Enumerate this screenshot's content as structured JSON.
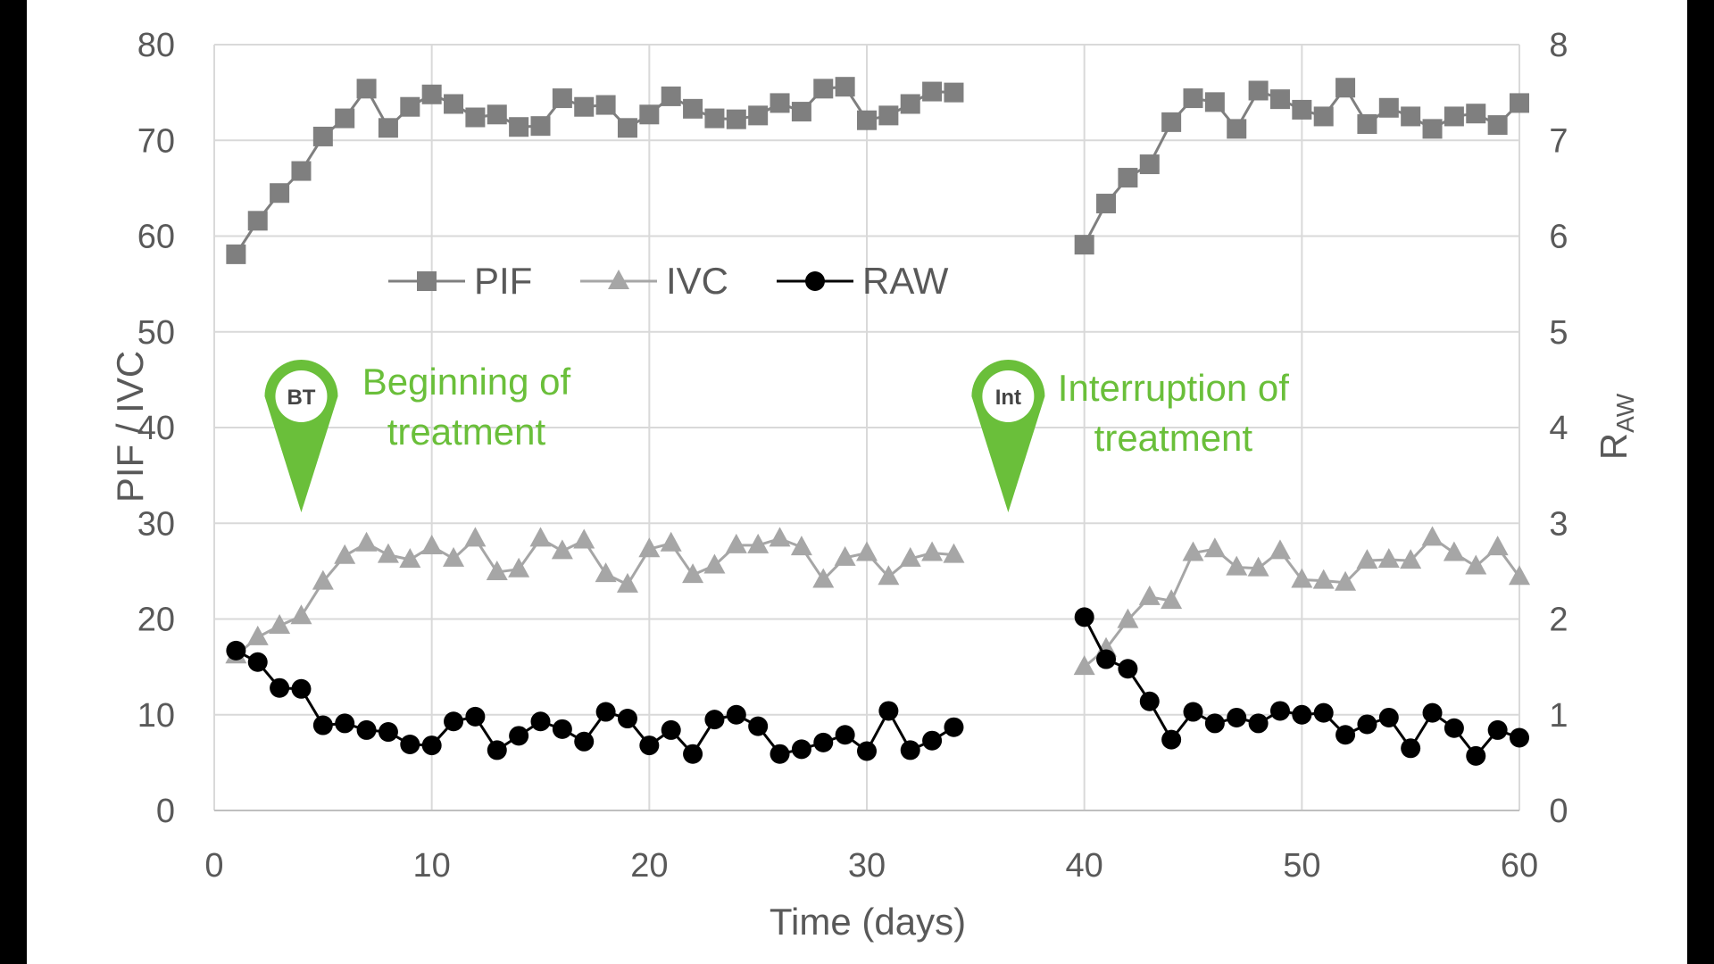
{
  "chart_data": {
    "type": "line",
    "xlabel": "Time (days)",
    "ylabel_left": "PIF / IVC",
    "ylabel_right": "R",
    "ylabel_right_sub": "AW",
    "xlim": [
      0,
      60
    ],
    "ylim_left": [
      0,
      80
    ],
    "ylim_right": [
      0,
      8
    ],
    "x_ticks": [
      "0",
      "10",
      "20",
      "30",
      "40",
      "50",
      "60"
    ],
    "y_ticks_left": [
      "0",
      "10",
      "20",
      "30",
      "40",
      "50",
      "60",
      "70",
      "80"
    ],
    "y_ticks_right": [
      "0",
      "1",
      "2",
      "3",
      "4",
      "5",
      "6",
      "7",
      "8"
    ],
    "grid": true,
    "legend_position": "top-left",
    "series": [
      {
        "name": "PIF",
        "axis": "left",
        "marker": "square",
        "color": "#7f7f7f",
        "x": [
          1,
          2,
          3,
          4,
          5,
          6,
          7,
          8,
          9,
          10,
          11,
          12,
          13,
          14,
          15,
          16,
          17,
          18,
          19,
          20,
          21,
          22,
          23,
          24,
          25,
          26,
          27,
          28,
          29,
          30,
          31,
          32,
          33,
          34,
          40,
          41,
          42,
          43,
          44,
          45,
          46,
          47,
          48,
          49,
          50,
          51,
          52,
          53,
          54,
          55,
          56,
          57,
          58,
          59,
          60
        ],
        "values": [
          58.1,
          61.6,
          64.5,
          66.8,
          70.4,
          72.3,
          75.4,
          71.3,
          73.5,
          74.8,
          73.8,
          72.4,
          72.7,
          71.4,
          71.5,
          74.4,
          73.5,
          73.7,
          71.3,
          72.7,
          74.6,
          73.3,
          72.3,
          72.2,
          72.6,
          73.9,
          73.0,
          75.4,
          75.6,
          72.1,
          72.6,
          73.8,
          75.1,
          75.0,
          59.1,
          63.4,
          66.1,
          67.5,
          71.9,
          74.4,
          74.0,
          71.2,
          75.2,
          74.3,
          73.2,
          72.5,
          75.5,
          71.7,
          73.4,
          72.5,
          71.2,
          72.5,
          72.8,
          71.6,
          73.9
        ]
      },
      {
        "name": "IVC",
        "axis": "left",
        "marker": "triangle",
        "color": "#a6a6a6",
        "x": [
          1,
          2,
          3,
          4,
          5,
          6,
          7,
          8,
          9,
          10,
          11,
          12,
          13,
          14,
          15,
          16,
          17,
          18,
          19,
          20,
          21,
          22,
          23,
          24,
          25,
          26,
          27,
          28,
          29,
          30,
          31,
          32,
          33,
          34,
          40,
          41,
          42,
          43,
          44,
          45,
          46,
          47,
          48,
          49,
          50,
          51,
          52,
          53,
          54,
          55,
          56,
          57,
          58,
          59,
          60
        ],
        "values": [
          16.2,
          18.1,
          19.3,
          20.3,
          23.9,
          26.6,
          27.9,
          26.7,
          26.2,
          27.6,
          26.3,
          28.4,
          24.9,
          25.2,
          28.4,
          27.1,
          28.2,
          24.7,
          23.6,
          27.3,
          27.9,
          24.6,
          25.6,
          27.7,
          27.7,
          28.4,
          27.5,
          24.1,
          26.4,
          26.9,
          24.4,
          26.3,
          26.9,
          26.7,
          15.0,
          16.9,
          19.9,
          22.3,
          21.9,
          26.9,
          27.3,
          25.4,
          25.3,
          27.1,
          24.1,
          24.0,
          23.8,
          26.1,
          26.2,
          26.1,
          28.5,
          26.9,
          25.5,
          27.5,
          24.4
        ]
      },
      {
        "name": "RAW",
        "axis": "right",
        "marker": "circle",
        "color": "#000000",
        "x": [
          1,
          2,
          3,
          4,
          5,
          6,
          7,
          8,
          9,
          10,
          11,
          12,
          13,
          14,
          15,
          16,
          17,
          18,
          19,
          20,
          21,
          22,
          23,
          24,
          25,
          26,
          27,
          28,
          29,
          30,
          31,
          32,
          33,
          34,
          40,
          41,
          42,
          43,
          44,
          45,
          46,
          47,
          48,
          49,
          50,
          51,
          52,
          53,
          54,
          55,
          56,
          57,
          58,
          59,
          60
        ],
        "values": [
          1.67,
          1.55,
          1.28,
          1.27,
          0.89,
          0.91,
          0.84,
          0.82,
          0.69,
          0.68,
          0.93,
          0.98,
          0.63,
          0.78,
          0.93,
          0.85,
          0.72,
          1.03,
          0.96,
          0.68,
          0.84,
          0.59,
          0.95,
          1.0,
          0.88,
          0.59,
          0.64,
          0.71,
          0.79,
          0.62,
          1.04,
          0.63,
          0.73,
          0.87,
          2.02,
          1.58,
          1.48,
          1.14,
          0.74,
          1.03,
          0.91,
          0.97,
          0.91,
          1.04,
          1.0,
          1.02,
          0.79,
          0.9,
          0.97,
          0.65,
          1.02,
          0.86,
          0.57,
          0.84,
          0.76
        ]
      }
    ],
    "annotations": [
      {
        "pin": "BT",
        "text_line1": "Beginning of",
        "text_line2": "treatment",
        "x": 4
      },
      {
        "pin": "Int",
        "text_line1": "Interruption of",
        "text_line2": "treatment",
        "x": 36.5
      }
    ]
  }
}
